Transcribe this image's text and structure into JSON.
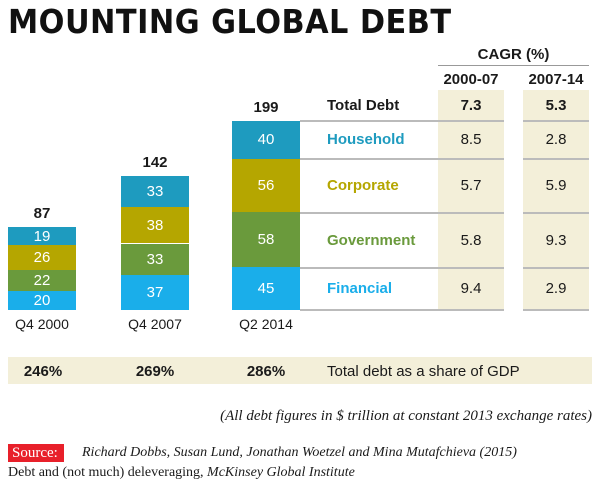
{
  "chart_data": {
    "type": "bar",
    "title": "MOUNTING GLOBAL DEBT",
    "stacked": true,
    "categories": [
      "Q4 2000",
      "Q4 2007",
      "Q2 2014"
    ],
    "totals": [
      87,
      142,
      199
    ],
    "series": [
      {
        "name": "Financial",
        "values": [
          20,
          37,
          45
        ],
        "color": "#1aaeea"
      },
      {
        "name": "Government",
        "values": [
          22,
          33,
          58
        ],
        "color": "#6a9a3c"
      },
      {
        "name": "Corporate",
        "values": [
          26,
          38,
          56
        ],
        "color": "#b5a600"
      },
      {
        "name": "Household",
        "values": [
          19,
          33,
          40
        ],
        "color": "#1e9bbf"
      }
    ],
    "gdp_share": [
      "246%",
      "269%",
      "286%"
    ],
    "gdp_label": "Total debt as a share of GDP",
    "unit_note": "(All debt figures in $ trillion at constant 2013 exchange rates)"
  },
  "table": {
    "header": "CAGR (%)",
    "columns": [
      "2000-07",
      "2007-14"
    ],
    "rows": [
      {
        "label": "Total Debt",
        "values": [
          "7.3",
          "5.3"
        ],
        "color": "#1a1a1a"
      },
      {
        "label": "Household",
        "values": [
          "8.5",
          "2.8"
        ],
        "color": "#1e9bbf"
      },
      {
        "label": "Corporate",
        "values": [
          "5.7",
          "5.9"
        ],
        "color": "#b5a600"
      },
      {
        "label": "Government",
        "values": [
          "5.8",
          "9.3"
        ],
        "color": "#6a9a3c"
      },
      {
        "label": "Financial",
        "values": [
          "9.4",
          "2.9"
        ],
        "color": "#1aaeea"
      }
    ]
  },
  "source": {
    "label": "Source:",
    "line1": "Richard Dobbs, Susan Lund, Jonathan Woetzel and Mina Mutafchieva (2015)",
    "line2_plain": "Debt and (not much) deleveraging, ",
    "line2_italic": "McKinsey Global Institute"
  }
}
